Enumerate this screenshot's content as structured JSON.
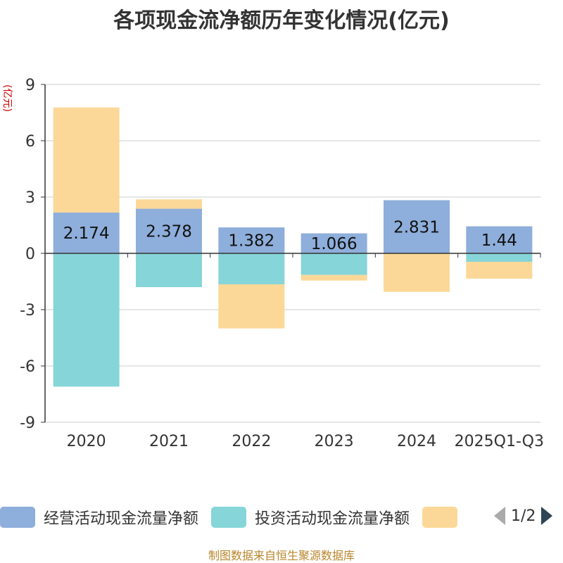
{
  "chart_data": {
    "type": "bar",
    "stacked": true,
    "title": "各项现金流净额历年变化情况(亿元)",
    "ylabel": "(亿元)",
    "ylim": [
      -9,
      9
    ],
    "yticks": [
      9,
      6,
      3,
      0,
      -3,
      -6,
      -9
    ],
    "categories": [
      "2020",
      "2021",
      "2022",
      "2023",
      "2024",
      "2025Q1-Q3"
    ],
    "series": [
      {
        "name": "经营活动现金流量净额",
        "color": "#8eaedb",
        "values": [
          2.174,
          2.378,
          1.382,
          1.066,
          2.831,
          1.44
        ],
        "labels": [
          "2.174",
          "2.378",
          "1.382",
          "1.066",
          "2.831",
          "1.44"
        ]
      },
      {
        "name": "投资活动现金流量净额",
        "color": "#86d5d8",
        "values": [
          -7.1,
          -1.8,
          -1.65,
          -1.15,
          0,
          -0.45
        ]
      },
      {
        "name": "",
        "color": "#fcd898",
        "values": [
          5.6,
          0.5,
          -2.35,
          -0.3,
          -2.05,
          -0.9
        ]
      }
    ],
    "legend": {
      "page": "1/2"
    }
  },
  "footer": "制图数据来自恒生聚源数据库",
  "colors": {
    "axis": "#333333",
    "grid": "#cccccc",
    "ylabel": "#cc0000",
    "pager_active": "#2f4554",
    "pager_inactive": "#aaaaaa"
  }
}
